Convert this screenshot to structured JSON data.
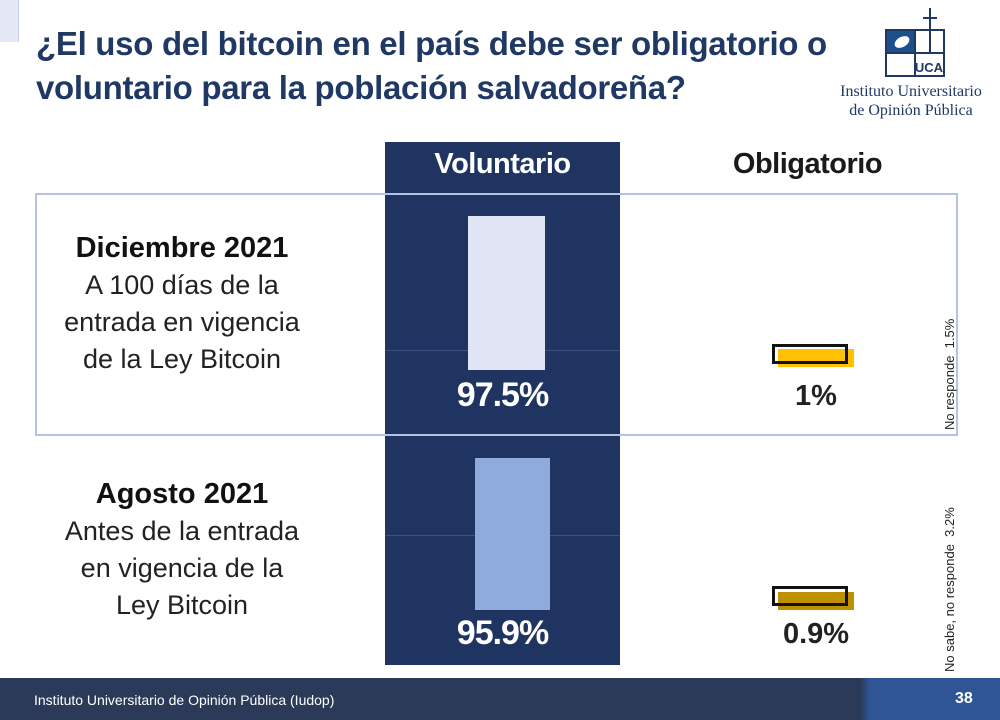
{
  "title": "¿El uso del bitcoin en el país debe ser obligatorio o voluntario para la población salvadoreña?",
  "logo": {
    "text_line1": "Instituto Universitario",
    "text_line2": "de Opinión Pública",
    "mark": "UCA"
  },
  "chart_data": {
    "type": "bar",
    "title": "¿El uso del bitcoin en el país debe ser obligatorio o voluntario para la población salvadoreña?",
    "columns": [
      "Voluntario",
      "Obligatorio"
    ],
    "rows": [
      {
        "period": "Diciembre 2021",
        "description": "A 100 días de la entrada en vigencia de la Ley Bitcoin",
        "voluntario": 97.5,
        "voluntario_label": "97.5%",
        "obligatorio": 1,
        "obligatorio_label": "1%",
        "other_label": "No responde",
        "other_value_label": "1.5%"
      },
      {
        "period": "Agosto 2021",
        "description": "Antes de la entrada en vigencia de la Ley Bitcoin",
        "voluntario": 95.9,
        "voluntario_label": "95.9%",
        "obligatorio": 0.9,
        "obligatorio_label": "0.9%",
        "other_label": "No sabe, no responde",
        "other_value_label": "3.2%"
      }
    ],
    "colors": {
      "vol_dec": "#e0e4f4",
      "vol_aug": "#8faadc",
      "obl_dec": "#ffc000",
      "obl_aug": "#bf9000"
    }
  },
  "row_desc": [
    [
      "A 100 días de la",
      "entrada en vigencia",
      "de la Ley Bitcoin"
    ],
    [
      "Antes de la entrada",
      "en vigencia de la",
      "Ley Bitcoin"
    ]
  ],
  "footer": {
    "text": "Instituto Universitario de Opinión Pública (Iudop)",
    "page": "38"
  }
}
